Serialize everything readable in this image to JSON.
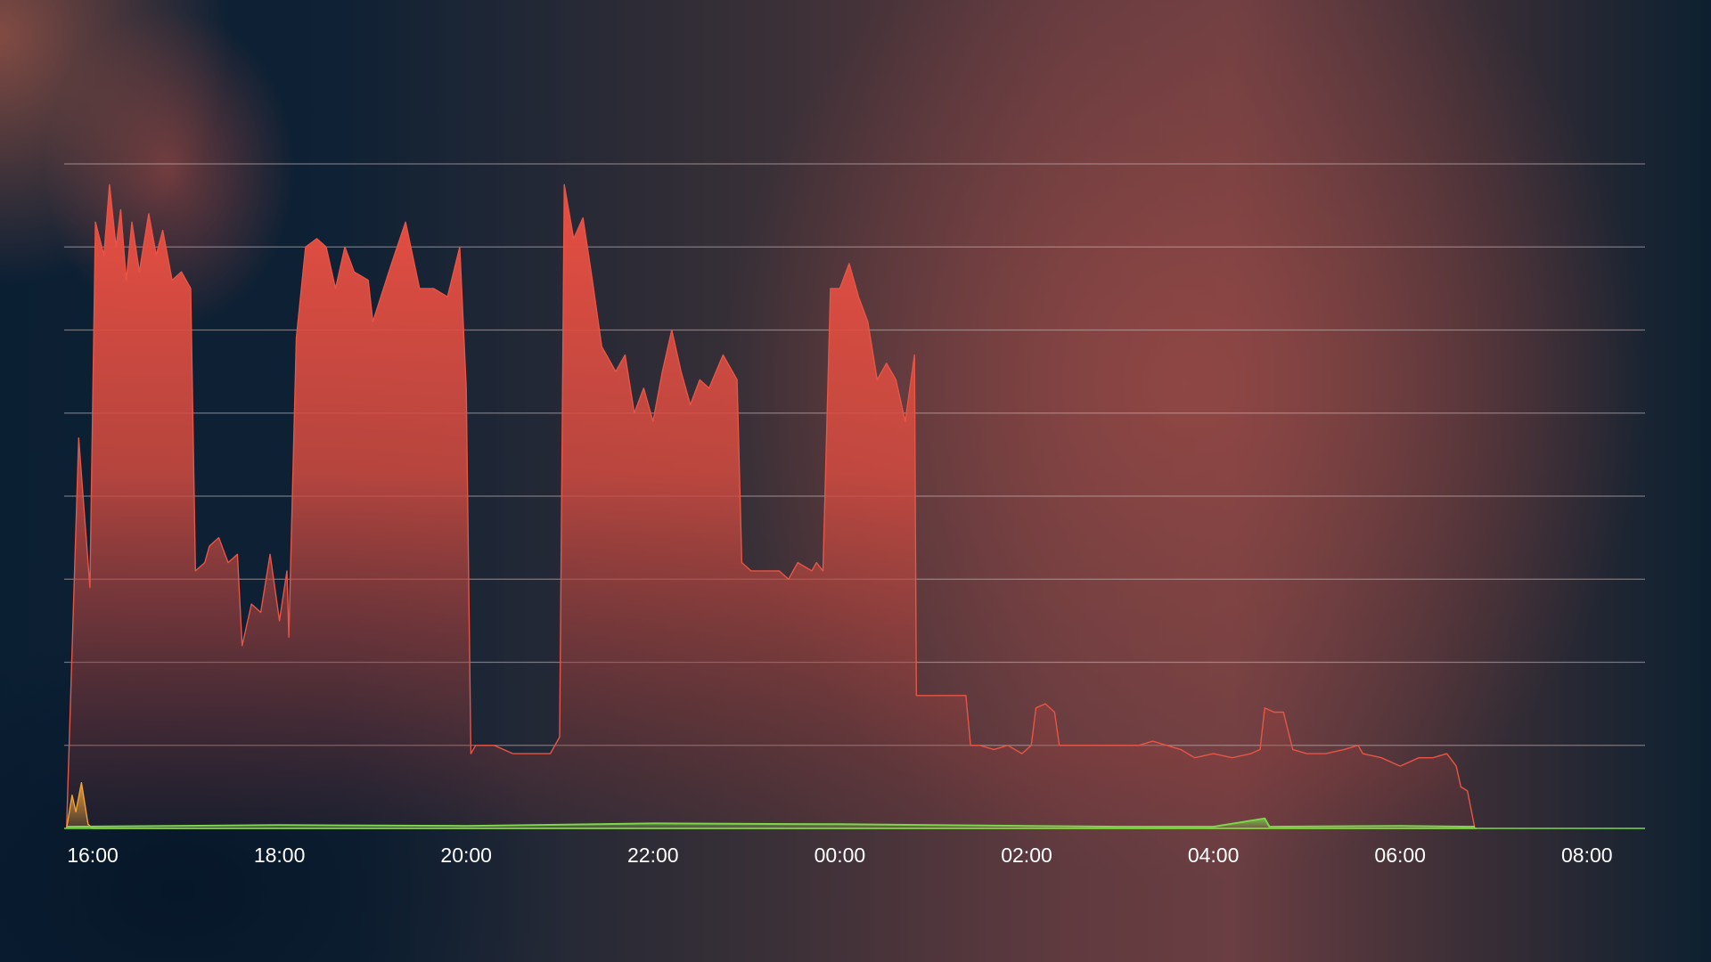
{
  "chart_data": {
    "type": "area",
    "title": "",
    "xlabel": "",
    "ylabel": "",
    "x_ticks": [
      "16:00",
      "18:00",
      "20:00",
      "22:00",
      "00:00",
      "02:00",
      "04:00",
      "06:00",
      "08:00"
    ],
    "x_range_hours": [
      15.7,
      32.7
    ],
    "y_range": [
      0,
      8
    ],
    "grid": "horizontal",
    "gridlines": 8,
    "colors": {
      "primary": "#e65545",
      "secondary": "#f2a336",
      "tertiary": "#7cd64a",
      "grid": "#c8b8b8"
    },
    "series": [
      {
        "color": "#e65545",
        "points": [
          [
            15.72,
            0.0
          ],
          [
            15.85,
            4.7
          ],
          [
            15.97,
            2.9
          ],
          [
            16.03,
            7.3
          ],
          [
            16.12,
            6.9
          ],
          [
            16.18,
            7.75
          ],
          [
            16.25,
            7.0
          ],
          [
            16.3,
            7.45
          ],
          [
            16.36,
            6.6
          ],
          [
            16.42,
            7.3
          ],
          [
            16.5,
            6.7
          ],
          [
            16.6,
            7.4
          ],
          [
            16.68,
            6.9
          ],
          [
            16.75,
            7.2
          ],
          [
            16.85,
            6.6
          ],
          [
            16.95,
            6.7
          ],
          [
            17.05,
            6.5
          ],
          [
            17.1,
            3.1
          ],
          [
            17.2,
            3.2
          ],
          [
            17.25,
            3.4
          ],
          [
            17.35,
            3.5
          ],
          [
            17.45,
            3.2
          ],
          [
            17.55,
            3.3
          ],
          [
            17.6,
            2.2
          ],
          [
            17.7,
            2.7
          ],
          [
            17.8,
            2.6
          ],
          [
            17.9,
            3.3
          ],
          [
            18.0,
            2.5
          ],
          [
            18.08,
            3.1
          ],
          [
            18.1,
            2.3
          ],
          [
            18.18,
            5.9
          ],
          [
            18.28,
            7.0
          ],
          [
            18.4,
            7.1
          ],
          [
            18.5,
            7.0
          ],
          [
            18.6,
            6.5
          ],
          [
            18.7,
            7.0
          ],
          [
            18.8,
            6.7
          ],
          [
            18.95,
            6.6
          ],
          [
            19.0,
            6.1
          ],
          [
            19.2,
            6.8
          ],
          [
            19.35,
            7.3
          ],
          [
            19.5,
            6.5
          ],
          [
            19.65,
            6.5
          ],
          [
            19.8,
            6.4
          ],
          [
            19.93,
            7.0
          ],
          [
            20.0,
            5.3
          ],
          [
            20.05,
            0.9
          ],
          [
            20.1,
            1.0
          ],
          [
            20.3,
            1.0
          ],
          [
            20.5,
            0.9
          ],
          [
            20.7,
            0.9
          ],
          [
            20.9,
            0.9
          ],
          [
            21.0,
            1.1
          ],
          [
            21.05,
            7.75
          ],
          [
            21.15,
            7.1
          ],
          [
            21.25,
            7.35
          ],
          [
            21.35,
            6.6
          ],
          [
            21.45,
            5.8
          ],
          [
            21.6,
            5.5
          ],
          [
            21.7,
            5.7
          ],
          [
            21.8,
            5.0
          ],
          [
            21.9,
            5.3
          ],
          [
            22.0,
            4.9
          ],
          [
            22.1,
            5.5
          ],
          [
            22.2,
            6.0
          ],
          [
            22.3,
            5.5
          ],
          [
            22.4,
            5.1
          ],
          [
            22.5,
            5.4
          ],
          [
            22.6,
            5.3
          ],
          [
            22.75,
            5.7
          ],
          [
            22.9,
            5.4
          ],
          [
            22.95,
            3.2
          ],
          [
            23.05,
            3.1
          ],
          [
            23.15,
            3.1
          ],
          [
            23.25,
            3.1
          ],
          [
            23.35,
            3.1
          ],
          [
            23.45,
            3.0
          ],
          [
            23.55,
            3.2
          ],
          [
            23.7,
            3.1
          ],
          [
            23.75,
            3.2
          ],
          [
            23.82,
            3.1
          ],
          [
            23.9,
            6.5
          ],
          [
            24.0,
            6.5
          ],
          [
            24.1,
            6.8
          ],
          [
            24.2,
            6.4
          ],
          [
            24.3,
            6.1
          ],
          [
            24.4,
            5.4
          ],
          [
            24.5,
            5.6
          ],
          [
            24.6,
            5.4
          ],
          [
            24.7,
            4.9
          ],
          [
            24.8,
            5.7
          ],
          [
            24.82,
            1.6
          ],
          [
            24.95,
            1.6
          ],
          [
            25.1,
            1.6
          ],
          [
            25.25,
            1.6
          ],
          [
            25.35,
            1.6
          ],
          [
            25.4,
            1.0
          ],
          [
            25.5,
            1.0
          ],
          [
            25.65,
            0.95
          ],
          [
            25.8,
            1.0
          ],
          [
            25.95,
            0.9
          ],
          [
            26.05,
            1.0
          ],
          [
            26.1,
            1.45
          ],
          [
            26.2,
            1.5
          ],
          [
            26.3,
            1.4
          ],
          [
            26.35,
            1.0
          ],
          [
            26.55,
            1.0
          ],
          [
            26.8,
            1.0
          ],
          [
            27.0,
            1.0
          ],
          [
            27.2,
            1.0
          ],
          [
            27.35,
            1.05
          ],
          [
            27.5,
            1.0
          ],
          [
            27.65,
            0.95
          ],
          [
            27.8,
            0.85
          ],
          [
            28.0,
            0.9
          ],
          [
            28.2,
            0.85
          ],
          [
            28.4,
            0.9
          ],
          [
            28.5,
            0.95
          ],
          [
            28.55,
            1.45
          ],
          [
            28.65,
            1.4
          ],
          [
            28.75,
            1.4
          ],
          [
            28.85,
            0.95
          ],
          [
            29.0,
            0.9
          ],
          [
            29.2,
            0.9
          ],
          [
            29.4,
            0.95
          ],
          [
            29.55,
            1.0
          ],
          [
            29.6,
            0.9
          ],
          [
            29.8,
            0.85
          ],
          [
            30.0,
            0.75
          ],
          [
            30.2,
            0.85
          ],
          [
            30.35,
            0.85
          ],
          [
            30.5,
            0.9
          ],
          [
            30.6,
            0.75
          ],
          [
            30.65,
            0.5
          ],
          [
            30.72,
            0.45
          ],
          [
            30.8,
            0.0
          ]
        ]
      },
      {
        "color": "#f2a336",
        "points": [
          [
            15.72,
            0.0
          ],
          [
            15.78,
            0.4
          ],
          [
            15.82,
            0.2
          ],
          [
            15.88,
            0.55
          ],
          [
            15.95,
            0.05
          ],
          [
            16.0,
            0.0
          ],
          [
            30.82,
            0.0
          ]
        ]
      },
      {
        "color": "#7cd64a",
        "points": [
          [
            15.72,
            0.02
          ],
          [
            18.0,
            0.04
          ],
          [
            20.0,
            0.03
          ],
          [
            22.0,
            0.06
          ],
          [
            24.0,
            0.05
          ],
          [
            26.0,
            0.03
          ],
          [
            27.0,
            0.02
          ],
          [
            28.0,
            0.02
          ],
          [
            28.55,
            0.12
          ],
          [
            28.6,
            0.02
          ],
          [
            30.0,
            0.03
          ],
          [
            30.8,
            0.02
          ]
        ]
      }
    ]
  }
}
